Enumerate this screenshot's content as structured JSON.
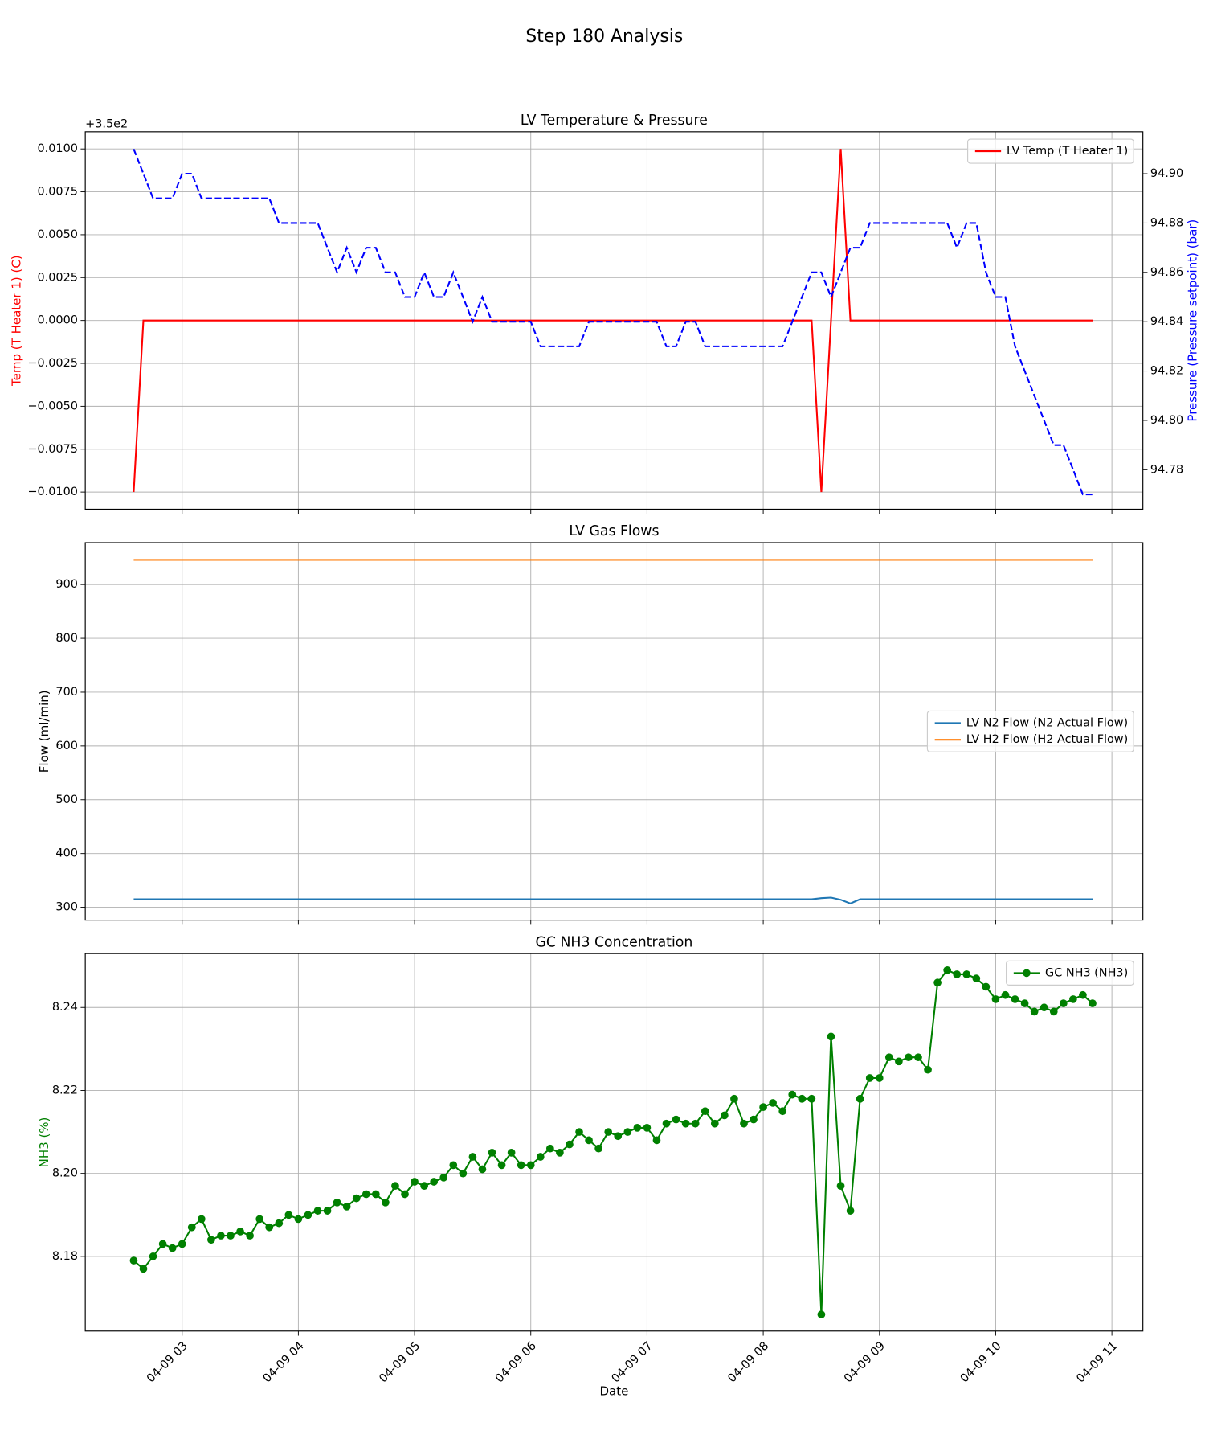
{
  "title": "Step 180 Analysis",
  "chart_data": [
    {
      "type": "line",
      "title": "LV Temperature & Pressure",
      "ylabel": "Temp (T Heater 1) (C)",
      "ylabel_color": "red",
      "y2label": "Pressure (Pressure setpoint) (bar)",
      "y2label_color": "blue",
      "y_offset_label": "+3.5e2",
      "ylim": [
        -0.011,
        0.011
      ],
      "yticks": [
        {
          "value": 0.01,
          "label": "0.0100"
        },
        0.0075,
        {
          "value": 0.005,
          "label": "0.0050"
        },
        0.0025,
        {
          "value": 0,
          "label": "0.0000"
        },
        {
          "value": -0.0025,
          "label": "−0.0025"
        },
        {
          "value": -0.005,
          "label": "−0.0050"
        },
        {
          "value": -0.0075,
          "label": "−0.0075"
        },
        {
          "value": -0.01,
          "label": "−0.0100"
        }
      ],
      "y2lim": [
        94.764,
        94.917
      ],
      "y2ticks": [
        94.78,
        {
          "value": 94.8,
          "label": "94.80"
        },
        94.82,
        94.84,
        94.86,
        94.88,
        {
          "value": 94.9,
          "label": "94.90"
        }
      ],
      "grid": true,
      "legend": "upper right",
      "x": [
        "04-09 02:35",
        "04-09 02:40",
        "04-09 02:45",
        "04-09 02:50",
        "04-09 02:55",
        "04-09 03:00",
        "04-09 03:05",
        "04-09 03:10",
        "04-09 03:15",
        "04-09 03:20",
        "04-09 03:25",
        "04-09 03:30",
        "04-09 03:35",
        "04-09 03:40",
        "04-09 03:45",
        "04-09 03:50",
        "04-09 03:55",
        "04-09 04:00",
        "04-09 04:05",
        "04-09 04:10",
        "04-09 04:15",
        "04-09 04:20",
        "04-09 04:25",
        "04-09 04:30",
        "04-09 04:35",
        "04-09 04:40",
        "04-09 04:45",
        "04-09 04:50",
        "04-09 04:55",
        "04-09 05:00",
        "04-09 05:05",
        "04-09 05:10",
        "04-09 05:15",
        "04-09 05:20",
        "04-09 05:25",
        "04-09 05:30",
        "04-09 05:35",
        "04-09 05:40",
        "04-09 05:45",
        "04-09 05:50",
        "04-09 05:55",
        "04-09 06:00",
        "04-09 06:05",
        "04-09 06:10",
        "04-09 06:15",
        "04-09 06:20",
        "04-09 06:25",
        "04-09 06:30",
        "04-09 06:35",
        "04-09 06:40",
        "04-09 06:45",
        "04-09 06:50",
        "04-09 06:55",
        "04-09 07:00",
        "04-09 07:05",
        "04-09 07:10",
        "04-09 07:15",
        "04-09 07:20",
        "04-09 07:25",
        "04-09 07:30",
        "04-09 07:35",
        "04-09 07:40",
        "04-09 07:45",
        "04-09 07:50",
        "04-09 07:55",
        "04-09 08:00",
        "04-09 08:05",
        "04-09 08:10",
        "04-09 08:15",
        "04-09 08:20",
        "04-09 08:25",
        "04-09 08:30",
        "04-09 08:35",
        "04-09 08:40",
        "04-09 08:45",
        "04-09 08:50",
        "04-09 08:55",
        "04-09 09:00",
        "04-09 09:05",
        "04-09 09:10",
        "04-09 09:15",
        "04-09 09:20",
        "04-09 09:25",
        "04-09 09:30",
        "04-09 09:35",
        "04-09 09:40",
        "04-09 09:45",
        "04-09 09:50",
        "04-09 09:55",
        "04-09 10:00",
        "04-09 10:05",
        "04-09 10:10",
        "04-09 10:15",
        "04-09 10:20",
        "04-09 10:25",
        "04-09 10:30",
        "04-09 10:35",
        "04-09 10:40",
        "04-09 10:45",
        "04-09 10:50"
      ],
      "series": [
        {
          "name": "LV Temp (T Heater 1)",
          "color": "red",
          "values": [
            -0.01,
            0,
            0,
            0,
            0,
            0,
            0,
            0,
            0,
            0,
            0,
            0,
            0,
            0,
            0,
            0,
            0,
            0,
            0,
            0,
            0,
            0,
            0,
            0,
            0,
            0,
            0,
            0,
            0,
            0,
            0,
            0,
            0,
            0,
            0,
            0,
            0,
            0,
            0,
            0,
            0,
            0,
            0,
            0,
            0,
            0,
            0,
            0,
            0,
            0,
            0,
            0,
            0,
            0,
            0,
            0,
            0,
            0,
            0,
            0,
            0,
            0,
            0,
            0,
            0,
            0,
            0,
            0,
            0,
            0,
            0,
            -0.01,
            0,
            0.01,
            0,
            0,
            0,
            0,
            0,
            0,
            0,
            0,
            0,
            0,
            0,
            0,
            0,
            0,
            0,
            0,
            0,
            0,
            0,
            0,
            0,
            0,
            0,
            0,
            0,
            0
          ]
        },
        {
          "color": "blue",
          "linestyle": "dashed",
          "axis": "y2",
          "values": [
            94.91,
            94.9,
            94.89,
            94.89,
            94.89,
            94.9,
            94.9,
            94.89,
            94.89,
            94.89,
            94.89,
            94.89,
            94.89,
            94.89,
            94.89,
            94.88,
            94.88,
            94.88,
            94.88,
            94.88,
            94.87,
            94.86,
            94.87,
            94.86,
            94.87,
            94.87,
            94.86,
            94.86,
            94.85,
            94.85,
            94.86,
            94.85,
            94.85,
            94.86,
            94.85,
            94.84,
            94.85,
            94.84,
            94.84,
            94.84,
            94.84,
            94.84,
            94.83,
            94.83,
            94.83,
            94.83,
            94.83,
            94.84,
            94.84,
            94.84,
            94.84,
            94.84,
            94.84,
            94.84,
            94.84,
            94.83,
            94.83,
            94.84,
            94.84,
            94.83,
            94.83,
            94.83,
            94.83,
            94.83,
            94.83,
            94.83,
            94.83,
            94.83,
            94.84,
            94.85,
            94.86,
            94.86,
            94.85,
            94.86,
            94.87,
            94.87,
            94.88,
            94.88,
            94.88,
            94.88,
            94.88,
            94.88,
            94.88,
            94.88,
            94.88,
            94.87,
            94.88,
            94.88,
            94.86,
            94.85,
            94.85,
            94.83,
            94.82,
            94.81,
            94.8,
            94.79,
            94.79,
            94.78,
            94.77,
            94.77
          ]
        }
      ]
    },
    {
      "type": "line",
      "title": "LV Gas Flows",
      "ylabel": "Flow (ml/min)",
      "ylim": [
        276,
        978
      ],
      "yticks": [
        300,
        400,
        500,
        600,
        700,
        800,
        900
      ],
      "grid": true,
      "legend": "center right",
      "x": [
        "04-09 02:35",
        "04-09 02:40",
        "04-09 02:45",
        "04-09 02:50",
        "04-09 02:55",
        "04-09 03:00",
        "04-09 03:05",
        "04-09 03:10",
        "04-09 03:15",
        "04-09 03:20",
        "04-09 03:25",
        "04-09 03:30",
        "04-09 03:35",
        "04-09 03:40",
        "04-09 03:45",
        "04-09 03:50",
        "04-09 03:55",
        "04-09 04:00",
        "04-09 04:05",
        "04-09 04:10",
        "04-09 04:15",
        "04-09 04:20",
        "04-09 04:25",
        "04-09 04:30",
        "04-09 04:35",
        "04-09 04:40",
        "04-09 04:45",
        "04-09 04:50",
        "04-09 04:55",
        "04-09 05:00",
        "04-09 05:05",
        "04-09 05:10",
        "04-09 05:15",
        "04-09 05:20",
        "04-09 05:25",
        "04-09 05:30",
        "04-09 05:35",
        "04-09 05:40",
        "04-09 05:45",
        "04-09 05:50",
        "04-09 05:55",
        "04-09 06:00",
        "04-09 06:05",
        "04-09 06:10",
        "04-09 06:15",
        "04-09 06:20",
        "04-09 06:25",
        "04-09 06:30",
        "04-09 06:35",
        "04-09 06:40",
        "04-09 06:45",
        "04-09 06:50",
        "04-09 06:55",
        "04-09 07:00",
        "04-09 07:05",
        "04-09 07:10",
        "04-09 07:15",
        "04-09 07:20",
        "04-09 07:25",
        "04-09 07:30",
        "04-09 07:35",
        "04-09 07:40",
        "04-09 07:45",
        "04-09 07:50",
        "04-09 07:55",
        "04-09 08:00",
        "04-09 08:05",
        "04-09 08:10",
        "04-09 08:15",
        "04-09 08:20",
        "04-09 08:25",
        "04-09 08:30",
        "04-09 08:35",
        "04-09 08:40",
        "04-09 08:45",
        "04-09 08:50",
        "04-09 08:55",
        "04-09 09:00",
        "04-09 09:05",
        "04-09 09:10",
        "04-09 09:15",
        "04-09 09:20",
        "04-09 09:25",
        "04-09 09:30",
        "04-09 09:35",
        "04-09 09:40",
        "04-09 09:45",
        "04-09 09:50",
        "04-09 09:55",
        "04-09 10:00",
        "04-09 10:05",
        "04-09 10:10",
        "04-09 10:15",
        "04-09 10:20",
        "04-09 10:25",
        "04-09 10:30",
        "04-09 10:35",
        "04-09 10:40",
        "04-09 10:45",
        "04-09 10:50"
      ],
      "series": [
        {
          "name": "LV N2 Flow (N2 Actual Flow)",
          "color": "#1f77b4",
          "values": [
            315,
            315,
            315,
            315,
            315,
            315,
            315,
            315,
            315,
            315,
            315,
            315,
            315,
            315,
            315,
            315,
            315,
            315,
            315,
            315,
            315,
            315,
            315,
            315,
            315,
            315,
            315,
            315,
            315,
            315,
            315,
            315,
            315,
            315,
            315,
            315,
            315,
            315,
            315,
            315,
            315,
            315,
            315,
            315,
            315,
            315,
            315,
            315,
            315,
            315,
            315,
            315,
            315,
            315,
            315,
            315,
            315,
            315,
            315,
            315,
            315,
            315,
            315,
            315,
            315,
            315,
            315,
            315,
            315,
            315,
            315,
            317,
            318,
            314,
            307,
            315,
            315,
            315,
            315,
            315,
            315,
            315,
            315,
            315,
            315,
            315,
            315,
            315,
            315,
            315,
            315,
            315,
            315,
            315,
            315,
            315,
            315,
            315,
            315,
            315
          ]
        },
        {
          "name": "LV H2 Flow (H2 Actual Flow)",
          "color": "#ff7f0e",
          "values": [
            946,
            946,
            946,
            946,
            946,
            946,
            946,
            946,
            946,
            946,
            946,
            946,
            946,
            946,
            946,
            946,
            946,
            946,
            946,
            946,
            946,
            946,
            946,
            946,
            946,
            946,
            946,
            946,
            946,
            946,
            946,
            946,
            946,
            946,
            946,
            946,
            946,
            946,
            946,
            946,
            946,
            946,
            946,
            946,
            946,
            946,
            946,
            946,
            946,
            946,
            946,
            946,
            946,
            946,
            946,
            946,
            946,
            946,
            946,
            946,
            946,
            946,
            946,
            946,
            946,
            946,
            946,
            946,
            946,
            946,
            946,
            946,
            946,
            946,
            946,
            946,
            946,
            946,
            946,
            946,
            946,
            946,
            946,
            946,
            946,
            946,
            946,
            946,
            946,
            946,
            946,
            946,
            946,
            946,
            946,
            946,
            946,
            946,
            946,
            946
          ]
        }
      ]
    },
    {
      "type": "line",
      "title": "GC NH3 Concentration",
      "ylabel": "NH3 (%)",
      "ylabel_color": "green",
      "xlabel": "Date",
      "ylim": [
        8.162,
        8.253
      ],
      "yticks": [
        8.18,
        {
          "value": 8.2,
          "label": "8.20"
        },
        8.22,
        8.24
      ],
      "xlim": [
        "04-09 02:10",
        "04-09 11:16"
      ],
      "xticks": [
        "04-09 03",
        "04-09 04",
        "04-09 05",
        "04-09 06",
        "04-09 07",
        "04-09 08",
        "04-09 09",
        "04-09 10",
        "04-09 11"
      ],
      "grid": true,
      "legend": "upper right",
      "x": [
        "04-09 02:35",
        "04-09 02:40",
        "04-09 02:45",
        "04-09 02:50",
        "04-09 02:55",
        "04-09 03:00",
        "04-09 03:05",
        "04-09 03:10",
        "04-09 03:15",
        "04-09 03:20",
        "04-09 03:25",
        "04-09 03:30",
        "04-09 03:35",
        "04-09 03:40",
        "04-09 03:45",
        "04-09 03:50",
        "04-09 03:55",
        "04-09 04:00",
        "04-09 04:05",
        "04-09 04:10",
        "04-09 04:15",
        "04-09 04:20",
        "04-09 04:25",
        "04-09 04:30",
        "04-09 04:35",
        "04-09 04:40",
        "04-09 04:45",
        "04-09 04:50",
        "04-09 04:55",
        "04-09 05:00",
        "04-09 05:05",
        "04-09 05:10",
        "04-09 05:15",
        "04-09 05:20",
        "04-09 05:25",
        "04-09 05:30",
        "04-09 05:35",
        "04-09 05:40",
        "04-09 05:45",
        "04-09 05:50",
        "04-09 05:55",
        "04-09 06:00",
        "04-09 06:05",
        "04-09 06:10",
        "04-09 06:15",
        "04-09 06:20",
        "04-09 06:25",
        "04-09 06:30",
        "04-09 06:35",
        "04-09 06:40",
        "04-09 06:45",
        "04-09 06:50",
        "04-09 06:55",
        "04-09 07:00",
        "04-09 07:05",
        "04-09 07:10",
        "04-09 07:15",
        "04-09 07:20",
        "04-09 07:25",
        "04-09 07:30",
        "04-09 07:35",
        "04-09 07:40",
        "04-09 07:45",
        "04-09 07:50",
        "04-09 07:55",
        "04-09 08:00",
        "04-09 08:05",
        "04-09 08:10",
        "04-09 08:15",
        "04-09 08:20",
        "04-09 08:25",
        "04-09 08:30",
        "04-09 08:35",
        "04-09 08:40",
        "04-09 08:45",
        "04-09 08:50",
        "04-09 08:55",
        "04-09 09:00",
        "04-09 09:05",
        "04-09 09:10",
        "04-09 09:15",
        "04-09 09:20",
        "04-09 09:25",
        "04-09 09:30",
        "04-09 09:35",
        "04-09 09:40",
        "04-09 09:45",
        "04-09 09:50",
        "04-09 09:55",
        "04-09 10:00",
        "04-09 10:05",
        "04-09 10:10",
        "04-09 10:15",
        "04-09 10:20",
        "04-09 10:25",
        "04-09 10:30",
        "04-09 10:35",
        "04-09 10:40",
        "04-09 10:45",
        "04-09 10:50"
      ],
      "series": [
        {
          "name": "GC NH3 (NH3)",
          "color": "green",
          "marker": "o",
          "values": [
            8.179,
            8.177,
            8.18,
            8.183,
            8.182,
            8.183,
            8.187,
            8.189,
            8.184,
            8.185,
            8.185,
            8.186,
            8.185,
            8.189,
            8.187,
            8.188,
            8.19,
            8.189,
            8.19,
            8.191,
            8.191,
            8.193,
            8.192,
            8.194,
            8.195,
            8.195,
            8.193,
            8.197,
            8.195,
            8.198,
            8.197,
            8.198,
            8.199,
            8.202,
            8.2,
            8.204,
            8.201,
            8.205,
            8.202,
            8.205,
            8.202,
            8.202,
            8.204,
            8.206,
            8.205,
            8.207,
            8.21,
            8.208,
            8.206,
            8.21,
            8.209,
            8.21,
            8.211,
            8.211,
            8.208,
            8.212,
            8.213,
            8.212,
            8.212,
            8.215,
            8.212,
            8.214,
            8.218,
            8.212,
            8.213,
            8.216,
            8.217,
            8.215,
            8.219,
            8.218,
            8.218,
            8.166,
            8.233,
            8.197,
            8.191,
            8.218,
            8.223,
            8.223,
            8.228,
            8.227,
            8.228,
            8.228,
            8.225,
            8.246,
            8.249,
            8.248,
            8.248,
            8.247,
            8.245,
            8.242,
            8.243,
            8.242,
            8.241,
            8.239,
            8.24,
            8.239,
            8.241,
            8.242,
            8.243,
            8.241
          ]
        }
      ]
    }
  ]
}
